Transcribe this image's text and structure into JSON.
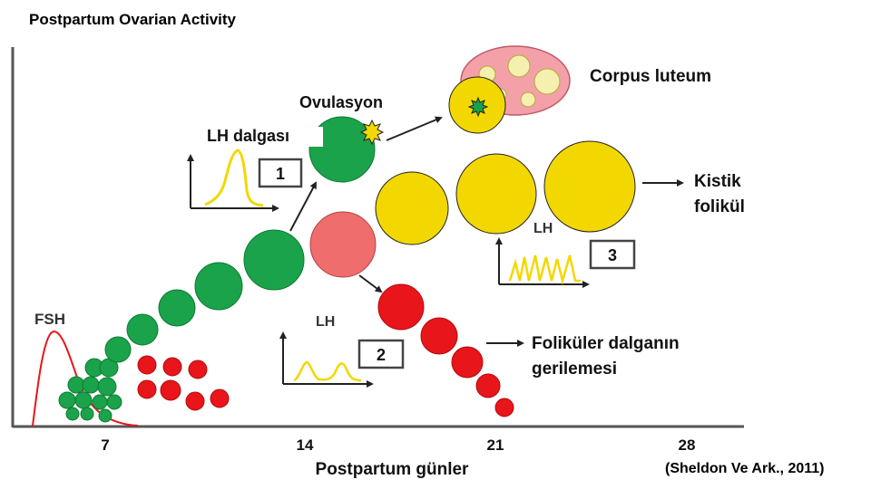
{
  "title": "Postpartum Ovarian Activity",
  "citation": "(Sheldon Ve Ark., 2011)",
  "axis": {
    "x_label": "Postpartum günler",
    "ticks": [
      "7",
      "14",
      "21",
      "28"
    ]
  },
  "labels": {
    "fsh": "FSH",
    "lh_wave": "LH dalgası",
    "ovulation": "Ovulasyon",
    "corpus_luteum": "Corpus luteum",
    "cystic_line1": "Kistik",
    "cystic_line2": "folikül",
    "regression_line1": "Foliküler dalganın",
    "regression_line2": "gerilemesi",
    "lh_2": "LH",
    "lh_3": "LH"
  },
  "boxes": {
    "box1": "1",
    "box2": "2",
    "box3": "3"
  },
  "colors": {
    "green": "#1aa34a",
    "red": "#e8151b",
    "yellow": "#f2d800",
    "salmon": "#f06d6d",
    "pink": "#f4a0a8",
    "fsh_curve": "#e8151b",
    "lh_curve": "#f2d800"
  }
}
